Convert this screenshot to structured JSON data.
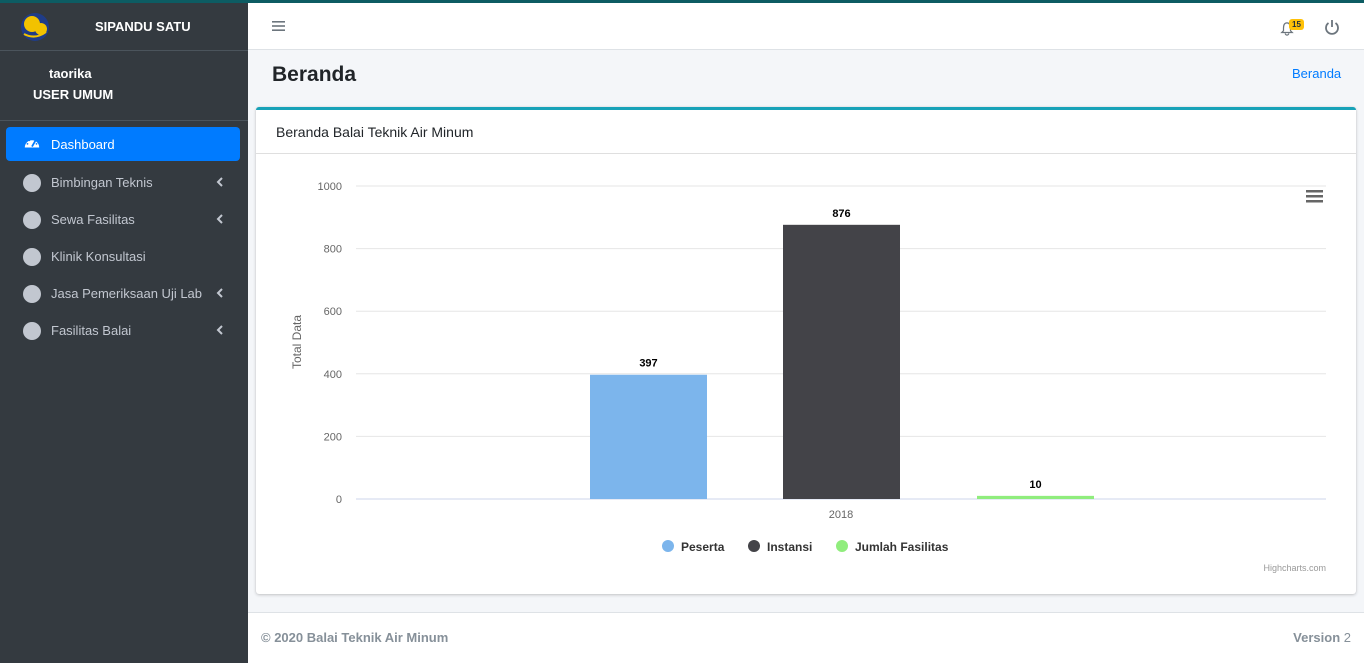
{
  "app": {
    "brand": "SIPANDU SATU"
  },
  "user": {
    "name": "taorika",
    "role": "USER UMUM"
  },
  "sidebar": {
    "items": [
      {
        "label": "Dashboard",
        "active": true,
        "has_children": false
      },
      {
        "label": "Bimbingan Teknis",
        "active": false,
        "has_children": true
      },
      {
        "label": "Sewa Fasilitas",
        "active": false,
        "has_children": true
      },
      {
        "label": "Klinik Konsultasi",
        "active": false,
        "has_children": false
      },
      {
        "label": "Jasa Pemeriksaan Uji Lab",
        "active": false,
        "has_children": true
      },
      {
        "label": "Fasilitas Balai",
        "active": false,
        "has_children": true
      }
    ]
  },
  "navbar": {
    "notification_count": "15"
  },
  "page": {
    "title": "Beranda",
    "breadcrumb": "Beranda"
  },
  "card": {
    "title": "Beranda Balai Teknik Air Minum"
  },
  "chart_data": {
    "type": "bar",
    "categories": [
      "2018"
    ],
    "series": [
      {
        "name": "Peserta",
        "values": [
          397
        ],
        "color": "#7cb5ec"
      },
      {
        "name": "Instansi",
        "values": [
          876
        ],
        "color": "#434348"
      },
      {
        "name": "Jumlah Fasilitas",
        "values": [
          10
        ],
        "color": "#90ed7d"
      }
    ],
    "title": "",
    "xlabel": "",
    "ylabel": "Total Data",
    "ylim": [
      0,
      1000
    ],
    "yticks": [
      "0",
      "200",
      "400",
      "600",
      "800",
      "1000"
    ],
    "grid": true,
    "legend": "bottom-center",
    "credits": "Highcharts.com"
  },
  "footer": {
    "copyright": "© 2020 Balai Teknik Air Minum",
    "version_label": "Version",
    "version_number": "2"
  }
}
